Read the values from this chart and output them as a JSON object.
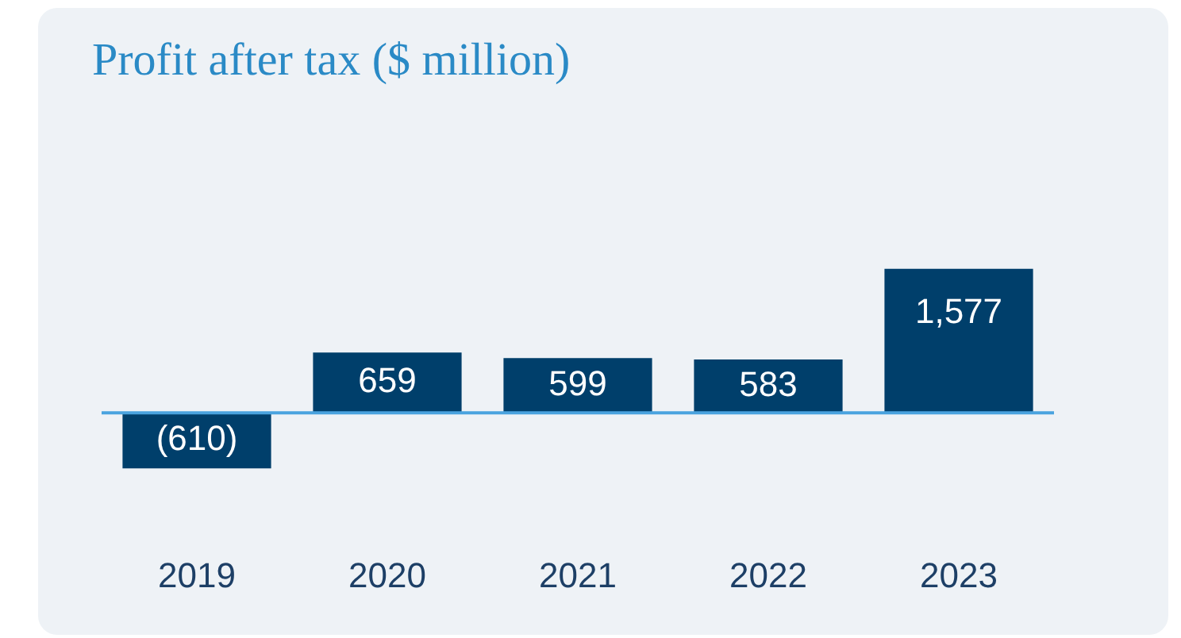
{
  "chart_data": {
    "type": "bar",
    "title": "Profit after tax ($ million)",
    "categories": [
      "2019",
      "2020",
      "2021",
      "2022",
      "2023"
    ],
    "values": [
      -610,
      659,
      599,
      583,
      1577
    ],
    "value_labels": [
      "(610)",
      "659",
      "599",
      "583",
      "1,577"
    ],
    "color": "#003f6b",
    "ref_lines": [
      {
        "axis": "y",
        "value": 0,
        "color": "#4aa3df"
      }
    ],
    "tick_labels": "x",
    "legend": false,
    "grid": false
  }
}
